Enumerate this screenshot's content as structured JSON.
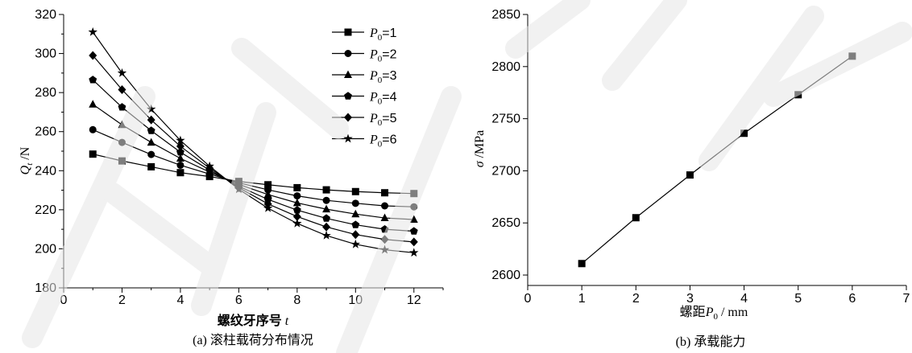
{
  "chart_data": [
    {
      "type": "line",
      "caption": "(a) 滚柱载荷分布情况",
      "xlabel_main": "螺纹牙序号",
      "xlabel_var": "t",
      "ylabel_var": "Q",
      "ylabel_sub": "t",
      "ylabel_unit": "/N",
      "xlim": [
        0,
        13
      ],
      "ylim": [
        180,
        320
      ],
      "xticks": [
        "0",
        "2",
        "4",
        "6",
        "8",
        "10",
        "12"
      ],
      "yticks": [
        "180",
        "200",
        "220",
        "240",
        "260",
        "280",
        "300",
        "320"
      ],
      "x": [
        1,
        2,
        3,
        4,
        5,
        6,
        7,
        8,
        9,
        10,
        11,
        12
      ],
      "legend_position": "top-right",
      "series": [
        {
          "name": "1",
          "name_prefix": "P",
          "name_sub": "0",
          "marker": "square",
          "values": [
            248.5,
            245,
            242,
            239,
            237,
            234.5,
            232.8,
            231.3,
            230.2,
            229.3,
            228.7,
            228.3
          ]
        },
        {
          "name": "2",
          "name_prefix": "P",
          "name_sub": "0",
          "marker": "circle",
          "values": [
            261,
            254.5,
            248.3,
            242.8,
            238.3,
            233.8,
            230.2,
            227.1,
            224.8,
            223.3,
            222,
            221.5
          ]
        },
        {
          "name": "3",
          "name_prefix": "P",
          "name_sub": "0",
          "marker": "triangle",
          "values": [
            274,
            263.5,
            254.5,
            246.3,
            239.3,
            233,
            227.8,
            223.5,
            220.3,
            217.8,
            215.8,
            215
          ]
        },
        {
          "name": "4",
          "name_prefix": "P",
          "name_sub": "0",
          "marker": "pentagon",
          "values": [
            286.5,
            272.5,
            260.5,
            249.5,
            240.3,
            232,
            225.3,
            219.8,
            215.6,
            212.3,
            210,
            209
          ]
        },
        {
          "name": "5",
          "name_prefix": "P",
          "name_sub": "0",
          "marker": "diamond",
          "values": [
            299,
            281.5,
            266,
            252.5,
            241.3,
            231.3,
            223,
            216.5,
            211.2,
            207.3,
            204.8,
            203.5
          ]
        },
        {
          "name": "6",
          "name_prefix": "P",
          "name_sub": "0",
          "marker": "star",
          "values": [
            311,
            290,
            271.5,
            255.5,
            242.3,
            230.5,
            220.8,
            213,
            206.8,
            202.3,
            199.5,
            198
          ]
        }
      ]
    },
    {
      "type": "line",
      "caption": "(b) 承载能力",
      "xlabel_main": "螺距",
      "xlabel_var": "P",
      "xlabel_sub": "0",
      "xlabel_unit": " / mm",
      "ylabel_var": "σ",
      "ylabel_unit": " /MPa",
      "xlim": [
        0,
        7
      ],
      "ylim": [
        2590,
        2850
      ],
      "xticks": [
        "0",
        "1",
        "2",
        "3",
        "4",
        "5",
        "6",
        "7"
      ],
      "yticks": [
        "2600",
        "2650",
        "2700",
        "2750",
        "2800",
        "2850"
      ],
      "marker": "square",
      "x": [
        1,
        2,
        3,
        4,
        5,
        6
      ],
      "values": [
        2611,
        2655,
        2696,
        2736,
        2773,
        2810
      ]
    }
  ]
}
